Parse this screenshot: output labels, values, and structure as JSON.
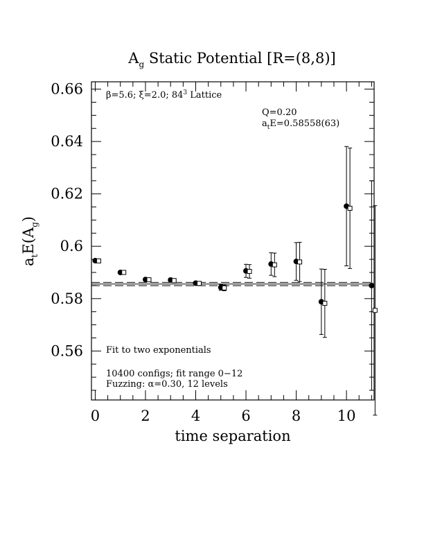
{
  "chart_data": {
    "type": "scatter",
    "title": {
      "prefix": "A",
      "subscript": "g",
      "suffix": " Static Potential [R=(8,8)]"
    },
    "xlabel": "time separation",
    "ylabel": {
      "a": "a",
      "t_sub": "t",
      "e": "E(A",
      "g_sub": "g",
      "close": ")"
    },
    "xlim": [
      -0.15,
      11.1
    ],
    "ylim": [
      0.5413,
      0.6628
    ],
    "x_ticks": [
      0,
      2,
      4,
      6,
      8,
      10
    ],
    "x_tick_labels": [
      "0",
      "2",
      "4",
      "6",
      "8",
      "10"
    ],
    "y_ticks": [
      0.56,
      0.58,
      0.6,
      0.62,
      0.64,
      0.66
    ],
    "y_tick_labels": [
      "0.56",
      "0.58",
      "0.6",
      "0.62",
      "0.64",
      "0.66"
    ],
    "annotations": {
      "lattice": {
        "beta": "β",
        "text1": "=5.6; ",
        "xi": "ξ",
        "text2": "=2.0; 84",
        "sup": "3",
        "text3": " Lattice"
      },
      "q": "Q=0.20",
      "energy": {
        "a": "a",
        "t_sub": "t",
        "rest": "E=0.58558(63)"
      },
      "fit": "Fit to two exponentials",
      "configs": "10400 configs; fit range 0−12",
      "fuzzing": {
        "pre": "Fuzzing: ",
        "alpha": "α",
        "post": "=0.30, 12 levels"
      }
    },
    "fit": {
      "value": 0.58558,
      "error": 0.00063,
      "x_range": [
        -0.15,
        11.1
      ]
    },
    "series": [
      {
        "marker": "filled-circle",
        "points": [
          {
            "x": 0,
            "y": 0.5945,
            "err": 0.0003
          },
          {
            "x": 1,
            "y": 0.59,
            "err": 0.0005
          },
          {
            "x": 2,
            "y": 0.5873,
            "err": 0.0005
          },
          {
            "x": 3,
            "y": 0.5871,
            "err": 0.0007
          },
          {
            "x": 4,
            "y": 0.5859,
            "err": 0.0007
          },
          {
            "x": 5,
            "y": 0.5843,
            "err": 0.0011
          },
          {
            "x": 6,
            "y": 0.5906,
            "err": 0.0025
          },
          {
            "x": 7,
            "y": 0.5932,
            "err": 0.0043
          },
          {
            "x": 8,
            "y": 0.5942,
            "err": 0.0072
          },
          {
            "x": 9,
            "y": 0.5788,
            "err": 0.0125
          },
          {
            "x": 10,
            "y": 0.6153,
            "err": 0.0228
          },
          {
            "x": 11,
            "y": 0.585,
            "err": 0.04
          }
        ]
      },
      {
        "marker": "open-square",
        "points": [
          {
            "x": 0,
            "y": 0.5944,
            "err": 0.0003
          },
          {
            "x": 1,
            "y": 0.59,
            "err": 0.0005
          },
          {
            "x": 2,
            "y": 0.5872,
            "err": 0.0005
          },
          {
            "x": 3,
            "y": 0.5869,
            "err": 0.0007
          },
          {
            "x": 4,
            "y": 0.5858,
            "err": 0.0007
          },
          {
            "x": 5,
            "y": 0.5841,
            "err": 0.0011
          },
          {
            "x": 6,
            "y": 0.5904,
            "err": 0.0026
          },
          {
            "x": 7,
            "y": 0.5929,
            "err": 0.0045
          },
          {
            "x": 8,
            "y": 0.594,
            "err": 0.0075
          },
          {
            "x": 9,
            "y": 0.5782,
            "err": 0.013
          },
          {
            "x": 10,
            "y": 0.6145,
            "err": 0.023
          },
          {
            "x": 11,
            "y": 0.5755,
            "err": 0.04
          }
        ]
      }
    ]
  }
}
